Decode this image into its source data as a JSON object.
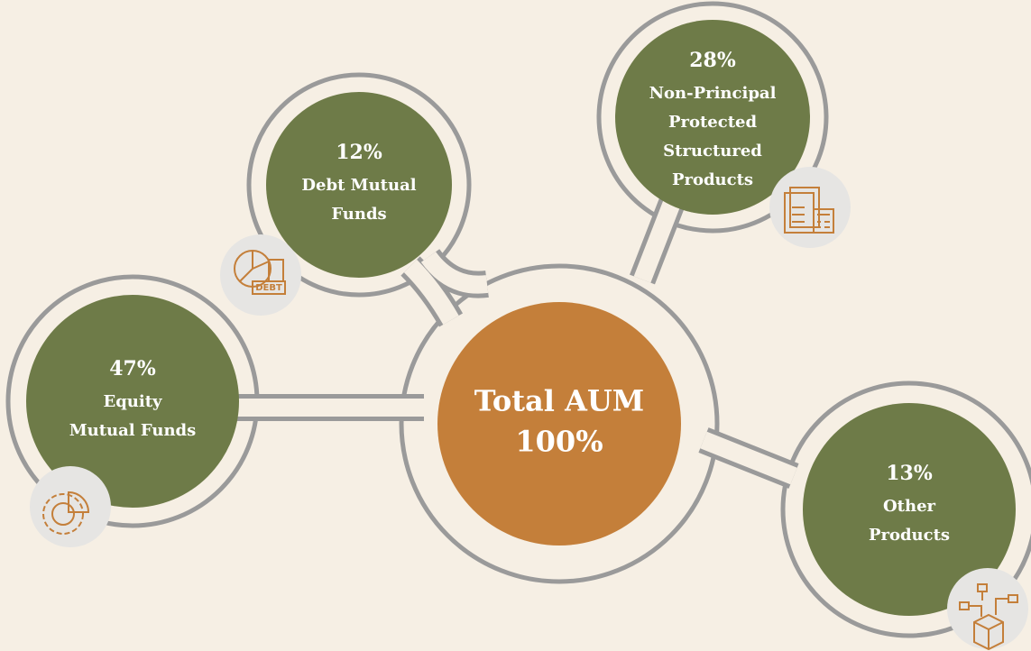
{
  "center": {
    "title": "Total AUM",
    "value": "100%"
  },
  "nodes": [
    {
      "value": "12%",
      "label": [
        "Debt Mutual",
        "Funds"
      ]
    },
    {
      "value": "28%",
      "label": [
        "Non-Principal",
        "Protected",
        "Structured",
        "Products"
      ]
    },
    {
      "value": "47%",
      "label": [
        "Equity",
        "Mutual Funds"
      ]
    },
    {
      "value": "13%",
      "label": [
        "Other",
        "Products"
      ]
    }
  ],
  "icons": [
    {
      "text": "DEBT"
    }
  ]
}
